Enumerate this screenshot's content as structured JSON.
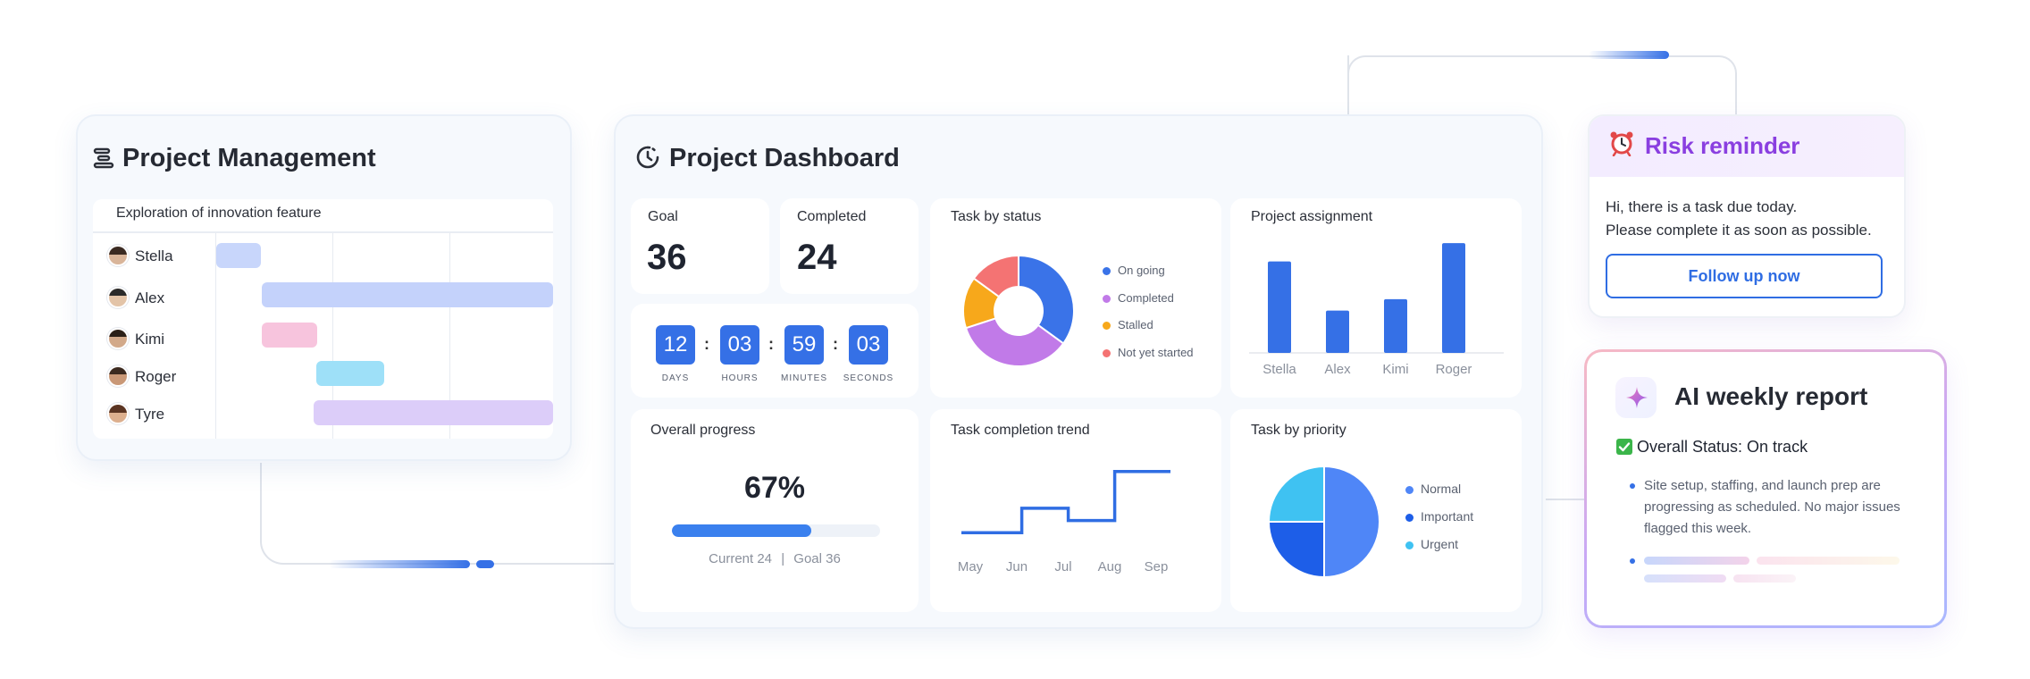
{
  "project_management": {
    "title": "Project Management",
    "icon": "gantt-icon",
    "feature": "Exploration of innovation feature",
    "members": [
      {
        "name": "Stella",
        "bar_color": "#c8d6fb"
      },
      {
        "name": "Alex",
        "bar_color": "#c4d2fb"
      },
      {
        "name": "Kimi",
        "bar_color": "#f7c4dd"
      },
      {
        "name": "Roger",
        "bar_color": "#9ee0f8"
      },
      {
        "name": "Tyre",
        "bar_color": "#dccdf9"
      }
    ]
  },
  "dashboard": {
    "title": "Project Dashboard",
    "icon": "timer-icon",
    "goal": {
      "label": "Goal",
      "value": "36"
    },
    "completed": {
      "label": "Completed",
      "value": "24"
    },
    "countdown": {
      "days": "12",
      "hours": "03",
      "minutes": "59",
      "seconds": "03",
      "days_label": "DAYS",
      "hours_label": "HOURS",
      "minutes_label": "MINUTES",
      "seconds_label": "SECONDS"
    },
    "task_by_status": {
      "label": "Task by status",
      "legend": [
        "On going",
        "Completed",
        "Stalled",
        "Not yet started"
      ],
      "colors": [
        "#3a73e8",
        "#c17ae8",
        "#f7a81b",
        "#f47373"
      ]
    },
    "project_assignment": {
      "label": "Project assignment",
      "color": "#3570e6"
    },
    "overall_progress": {
      "label": "Overall progress",
      "percent": "67%",
      "fraction": 0.67,
      "current_label": "Current 24",
      "goal_label": "Goal 36",
      "separator": "|"
    },
    "task_completion_trend": {
      "label": "Task completion trend",
      "color": "#2f6de3"
    },
    "task_by_priority": {
      "label": "Task by priority",
      "legend": [
        "Normal",
        "Important",
        "Urgent"
      ],
      "colors": [
        "#4f86f7",
        "#1d5ee8",
        "#3fc2f2"
      ]
    }
  },
  "chart_data": [
    {
      "type": "pie",
      "categories": [
        "On going",
        "Completed",
        "Stalled",
        "Not yet started"
      ],
      "values": [
        35,
        35,
        15,
        15
      ]
    },
    {
      "type": "bar",
      "categories": [
        "Stella",
        "Alex",
        "Kimi",
        "Roger"
      ],
      "values": [
        8,
        3.7,
        4.7,
        9.6
      ],
      "ylim": [
        0,
        10
      ]
    },
    {
      "type": "line",
      "categories": [
        "May",
        "Jun",
        "Jul",
        "Aug",
        "Sep"
      ],
      "values": [
        1,
        1,
        3,
        3,
        2,
        2,
        6,
        6
      ],
      "x": [
        0,
        1.3,
        1.3,
        2.3,
        2.3,
        3.3,
        3.3,
        4.5
      ],
      "step": true,
      "ylim": [
        0,
        7
      ]
    },
    {
      "type": "pie",
      "categories": [
        "Normal",
        "Important",
        "Urgent"
      ],
      "values": [
        50,
        25,
        25
      ]
    }
  ],
  "risk": {
    "title": "Risk reminder",
    "icon": "alarm-clock-icon",
    "line1": "Hi, there is a task due today.",
    "line2": "Please complete it as soon as possible.",
    "button": "Follow up now"
  },
  "ai_report": {
    "title": "AI weekly report",
    "icon": "sparkle-icon",
    "status": "Overall Status: On track",
    "status_icon": "check-box-icon",
    "bullet": "Site setup, staffing, and launch prep are progressing as scheduled. No major issues flagged this week."
  }
}
